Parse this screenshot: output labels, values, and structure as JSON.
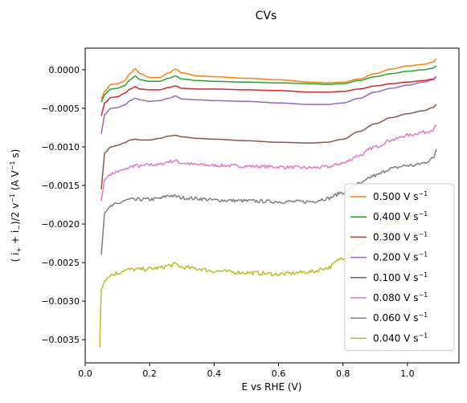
{
  "chart_data": {
    "type": "line",
    "title": "CVs",
    "xlabel": "E vs RHE (V)",
    "ylabel_parts": {
      "open": "( i",
      "plus_sub": "+",
      "mid": " + i",
      "minus_sub": "−",
      "rest1": ")/2 v",
      "exp": "−1",
      "rest2": " (A V",
      "exp2": "−1",
      "rest3": " s)"
    },
    "xlim": [
      0.0,
      1.16
    ],
    "ylim": [
      -0.0038,
      0.00028
    ],
    "xticks": [
      {
        "v": 0.0,
        "label": "0.0"
      },
      {
        "v": 0.2,
        "label": "0.2"
      },
      {
        "v": 0.4,
        "label": "0.4"
      },
      {
        "v": 0.6,
        "label": "0.6"
      },
      {
        "v": 0.8,
        "label": "0.8"
      },
      {
        "v": 1.0,
        "label": "1.0"
      }
    ],
    "yticks": [
      {
        "v": 0.0,
        "label": "0.0000"
      },
      {
        "v": -0.0005,
        "label": "−0.0005"
      },
      {
        "v": -0.001,
        "label": "−0.0010"
      },
      {
        "v": -0.0015,
        "label": "−0.0015"
      },
      {
        "v": -0.002,
        "label": "−0.0020"
      },
      {
        "v": -0.0025,
        "label": "−0.0025"
      },
      {
        "v": -0.003,
        "label": "−0.0030"
      },
      {
        "v": -0.0035,
        "label": "−0.0035"
      }
    ],
    "legend_position": "lower-right",
    "series": [
      {
        "name": "0.500",
        "unit": "V s",
        "exp": "−1",
        "color": "#ff7f0e",
        "x": [
          0.05,
          0.06,
          0.08,
          0.1,
          0.12,
          0.14,
          0.155,
          0.17,
          0.2,
          0.23,
          0.26,
          0.28,
          0.3,
          0.35,
          0.4,
          0.5,
          0.6,
          0.7,
          0.75,
          0.8,
          0.85,
          0.9,
          0.95,
          1.0,
          1.05,
          1.08,
          1.09
        ],
        "y": [
          -0.00038,
          -0.00028,
          -0.00019,
          -0.00018,
          -0.00015,
          -5e-05,
          1e-05,
          -5e-05,
          -0.0001,
          -0.0001,
          -4e-05,
          1e-05,
          -4e-05,
          -8e-05,
          -9e-05,
          -0.00011,
          -0.00013,
          -0.00016,
          -0.00017,
          -0.00016,
          -0.00012,
          -5e-05,
          1e-05,
          5e-05,
          7e-05,
          0.0001,
          0.00014
        ]
      },
      {
        "name": "0.400",
        "unit": "V s",
        "exp": "−1",
        "color": "#2ca02c",
        "x": [
          0.05,
          0.06,
          0.08,
          0.1,
          0.12,
          0.14,
          0.155,
          0.17,
          0.2,
          0.23,
          0.26,
          0.28,
          0.3,
          0.35,
          0.4,
          0.5,
          0.6,
          0.7,
          0.75,
          0.8,
          0.85,
          0.9,
          0.95,
          1.0,
          1.05,
          1.08,
          1.09
        ],
        "y": [
          -0.00042,
          -0.00032,
          -0.00025,
          -0.00024,
          -0.00021,
          -0.00013,
          -8e-05,
          -0.00013,
          -0.00015,
          -0.00015,
          -0.00011,
          -8e-05,
          -0.00012,
          -0.00014,
          -0.00015,
          -0.00016,
          -0.00017,
          -0.00018,
          -0.00019,
          -0.00018,
          -0.00014,
          -9e-05,
          -5e-05,
          -2e-05,
          0.0,
          2e-05,
          5e-05
        ]
      },
      {
        "name": "0.300",
        "unit": "V s",
        "exp": "−1",
        "color": "#d62728",
        "x": [
          0.05,
          0.06,
          0.08,
          0.1,
          0.12,
          0.14,
          0.155,
          0.17,
          0.2,
          0.23,
          0.26,
          0.28,
          0.3,
          0.35,
          0.4,
          0.5,
          0.6,
          0.7,
          0.75,
          0.8,
          0.85,
          0.9,
          0.95,
          1.0,
          1.05,
          1.08,
          1.09
        ],
        "y": [
          -0.0006,
          -0.00043,
          -0.00036,
          -0.00035,
          -0.00031,
          -0.00025,
          -0.00022,
          -0.00025,
          -0.00026,
          -0.00026,
          -0.00023,
          -0.00021,
          -0.00024,
          -0.00025,
          -0.00025,
          -0.00026,
          -0.00027,
          -0.00029,
          -0.00029,
          -0.00028,
          -0.00025,
          -0.00021,
          -0.00018,
          -0.00016,
          -0.00014,
          -0.00012,
          -9e-05
        ]
      },
      {
        "name": "0.200",
        "unit": "V s",
        "exp": "−1",
        "color": "#9467bd",
        "x": [
          0.05,
          0.06,
          0.08,
          0.1,
          0.12,
          0.14,
          0.155,
          0.17,
          0.2,
          0.23,
          0.26,
          0.28,
          0.3,
          0.35,
          0.4,
          0.5,
          0.6,
          0.7,
          0.75,
          0.8,
          0.85,
          0.9,
          0.95,
          1.0,
          1.05,
          1.08,
          1.09
        ],
        "y": [
          -0.00083,
          -0.00058,
          -0.0005,
          -0.00049,
          -0.00046,
          -0.0004,
          -0.00037,
          -0.00039,
          -0.00041,
          -0.0004,
          -0.00037,
          -0.00034,
          -0.00038,
          -0.00039,
          -0.0004,
          -0.00041,
          -0.00043,
          -0.00045,
          -0.00045,
          -0.00043,
          -0.00037,
          -0.00029,
          -0.00024,
          -0.0002,
          -0.00016,
          -0.00013,
          -9e-05
        ]
      },
      {
        "name": "0.100",
        "unit": "V s",
        "exp": "−1",
        "color": "#8c564b",
        "x": [
          0.05,
          0.06,
          0.08,
          0.1,
          0.12,
          0.14,
          0.155,
          0.17,
          0.2,
          0.23,
          0.26,
          0.28,
          0.3,
          0.35,
          0.4,
          0.5,
          0.6,
          0.7,
          0.75,
          0.8,
          0.85,
          0.9,
          0.95,
          1.0,
          1.05,
          1.08,
          1.09
        ],
        "y": [
          -0.00155,
          -0.00108,
          -0.001,
          -0.00098,
          -0.00095,
          -0.00091,
          -0.0009,
          -0.00091,
          -0.00091,
          -0.00089,
          -0.00086,
          -0.00085,
          -0.00087,
          -0.00089,
          -0.0009,
          -0.00092,
          -0.00094,
          -0.00095,
          -0.00094,
          -0.0009,
          -0.0008,
          -0.0007,
          -0.00062,
          -0.00057,
          -0.00053,
          -0.00049,
          -0.00045
        ]
      },
      {
        "name": "0.080",
        "unit": "V s",
        "exp": "−1",
        "color": "#e377c2",
        "x": [
          0.05,
          0.06,
          0.08,
          0.1,
          0.12,
          0.14,
          0.155,
          0.17,
          0.2,
          0.23,
          0.26,
          0.28,
          0.3,
          0.35,
          0.4,
          0.5,
          0.6,
          0.7,
          0.75,
          0.8,
          0.85,
          0.9,
          0.95,
          1.0,
          1.05,
          1.08,
          1.09
        ],
        "y": [
          -0.0017,
          -0.00142,
          -0.00135,
          -0.00132,
          -0.0013,
          -0.00126,
          -0.00124,
          -0.00125,
          -0.00123,
          -0.00123,
          -0.00119,
          -0.00118,
          -0.00121,
          -0.00123,
          -0.00124,
          -0.00125,
          -0.00126,
          -0.00127,
          -0.00126,
          -0.00121,
          -0.00111,
          -0.001,
          -0.00091,
          -0.00085,
          -0.00081,
          -0.00078,
          -0.00072
        ]
      },
      {
        "name": "0.060",
        "unit": "V s",
        "exp": "−1",
        "color": "#7f7f7f",
        "x": [
          0.05,
          0.06,
          0.08,
          0.1,
          0.12,
          0.14,
          0.155,
          0.17,
          0.2,
          0.23,
          0.26,
          0.28,
          0.3,
          0.35,
          0.4,
          0.5,
          0.6,
          0.7,
          0.75,
          0.8,
          0.85,
          0.9,
          0.95,
          1.0,
          1.02,
          1.05,
          1.08,
          1.09
        ],
        "y": [
          -0.0024,
          -0.00185,
          -0.00177,
          -0.00174,
          -0.0017,
          -0.00168,
          -0.00169,
          -0.00168,
          -0.00168,
          -0.00167,
          -0.00163,
          -0.00164,
          -0.00166,
          -0.00167,
          -0.00169,
          -0.0017,
          -0.00171,
          -0.00171,
          -0.00167,
          -0.00159,
          -0.00148,
          -0.00137,
          -0.00128,
          -0.00124,
          -0.00124,
          -0.00121,
          -0.00115,
          -0.00103
        ]
      },
      {
        "name": "0.040",
        "unit": "V s",
        "exp": "−1",
        "color": "#bcbd22",
        "x": [
          0.045,
          0.048,
          0.05,
          0.06,
          0.08,
          0.1,
          0.12,
          0.14,
          0.16,
          0.2,
          0.23,
          0.26,
          0.28,
          0.3,
          0.35,
          0.4,
          0.5,
          0.6,
          0.7,
          0.75,
          0.8,
          0.85,
          0.9,
          0.95,
          1.0,
          1.02
        ],
        "y": [
          -0.0036,
          -0.0031,
          -0.00285,
          -0.00272,
          -0.00266,
          -0.00264,
          -0.0026,
          -0.00259,
          -0.00259,
          -0.00258,
          -0.00257,
          -0.00254,
          -0.00252,
          -0.00256,
          -0.00258,
          -0.00261,
          -0.00263,
          -0.00265,
          -0.00262,
          -0.00257,
          -0.00244,
          -0.00227,
          -0.00214,
          -0.00201,
          -0.00192,
          -0.00189
        ]
      }
    ]
  }
}
